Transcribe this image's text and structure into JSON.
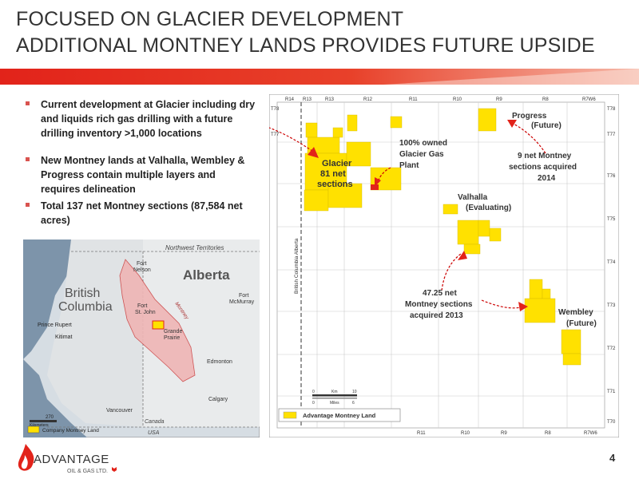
{
  "title": {
    "line1": "FOCUSED ON GLACIER DEVELOPMENT",
    "line2": "ADDITIONAL MONTNEY LANDS PROVIDES FUTURE UPSIDE"
  },
  "bullets": [
    "Current development at Glacier including dry and liquids rich gas drilling with a future drilling inventory >1,000 locations",
    "New Montney lands at Valhalla, Wembley & Progress contain multiple layers and requires delineation",
    "Total 137 net Montney sections (87,584 net acres)"
  ],
  "colors": {
    "accent_red": "#e2231a",
    "land_yellow": "#ffe100",
    "bullet_red": "#d9534f"
  },
  "mini_map": {
    "northwest_territories": "Northwest Territories",
    "alberta": "Alberta",
    "british": "British",
    "columbia": "Columbia",
    "fort_nelson_1": "Fort",
    "fort_nelson_2": "Nelson",
    "fort_st_john_1": "Fort",
    "fort_st_john_2": "St. John",
    "montney": "Montney",
    "grande_prairie_1": "Grande",
    "grande_prairie_2": "Prairie",
    "fort_mcmurray_1": "Fort",
    "fort_mcmurray_2": "McMurray",
    "prince_rupert": "Prince Rupert",
    "kitimat": "Kitimat",
    "edmonton": "Edmonton",
    "calgary": "Calgary",
    "vancouver": "Vancouver",
    "canada": "Canada",
    "usa": "USA",
    "scale_value": "270",
    "scale_unit": "Kilometers",
    "legend": "Company Montney Land"
  },
  "main_map": {
    "ranges_top": [
      "R14",
      "R13",
      "R13",
      "R12",
      "R11",
      "R10",
      "R9",
      "R8",
      "R7W6"
    ],
    "ranges_bottom": [
      "R11",
      "R10",
      "R9",
      "R8",
      "R7W6"
    ],
    "townships_right": [
      "T78",
      "T77",
      "T76",
      "T75",
      "T74",
      "T73",
      "T72",
      "T71",
      "T70"
    ],
    "township_left_top": "T78",
    "township_left_2": "T77",
    "bc_alberta_label": "British Columbia   Alberta",
    "glacier": [
      "Glacier",
      "81 net",
      "sections"
    ],
    "plant": [
      "100% owned",
      "Glacier Gas",
      "Plant"
    ],
    "progress": [
      "Progress",
      "(Future)"
    ],
    "progress_acq": [
      "9 net Montney",
      "sections acquired",
      "2014"
    ],
    "valhalla": [
      "Valhalla",
      "(Evaluating)"
    ],
    "acq_2013": [
      "47.25 net",
      "Montney sections",
      "acquired 2013"
    ],
    "wembley": [
      "Wembley",
      "(Future)"
    ],
    "scale_km": [
      "0",
      "Km",
      "10"
    ],
    "scale_miles": [
      "0",
      "Miles",
      "6"
    ],
    "legend": "Advantage Montney Land"
  },
  "logo": {
    "name": "ADVANTAGE",
    "sub": "OIL & GAS LTD."
  },
  "page_number": "4"
}
